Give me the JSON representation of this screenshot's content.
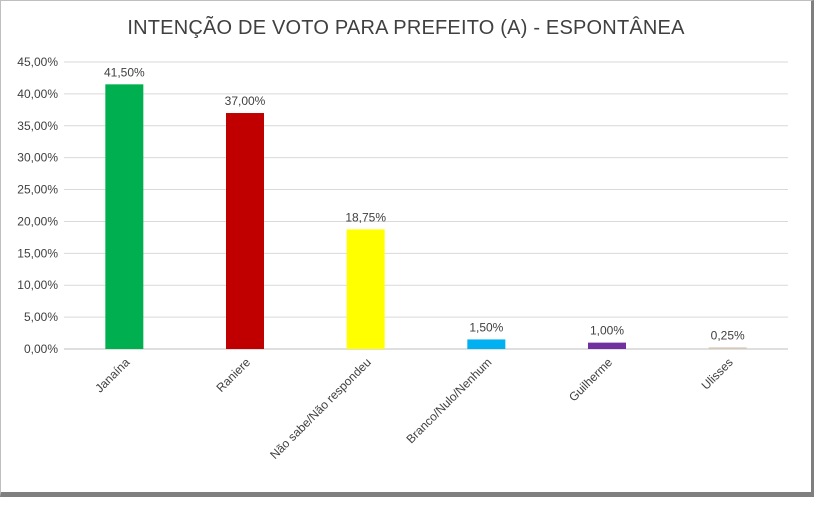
{
  "chart_data": {
    "type": "bar",
    "title": "INTENÇÃO DE VOTO PARA PREFEITO (A) - ESPONTÂNEA",
    "categories": [
      "Janaína",
      "Raniere",
      "Não sabe/Não respondeu",
      "Branco/Nulo/Nenhum",
      "Guilherme",
      "Ulisses"
    ],
    "values": [
      41.5,
      37.0,
      18.75,
      1.5,
      1.0,
      0.25
    ],
    "value_labels": [
      "41,50%",
      "37,00%",
      "18,75%",
      "1,50%",
      "1,00%",
      "0,25%"
    ],
    "colors": [
      "#00b050",
      "#c00000",
      "#ffff00",
      "#00b0f0",
      "#7030a0",
      "#d6c8b2"
    ],
    "ylim": [
      0,
      45
    ],
    "yticks": [
      0,
      5,
      10,
      15,
      20,
      25,
      30,
      35,
      40,
      45
    ],
    "ytick_labels": [
      "0,00%",
      "5,00%",
      "10,00%",
      "15,00%",
      "20,00%",
      "25,00%",
      "30,00%",
      "35,00%",
      "40,00%",
      "45,00%"
    ],
    "grid": true,
    "xlabel": "",
    "ylabel": ""
  }
}
